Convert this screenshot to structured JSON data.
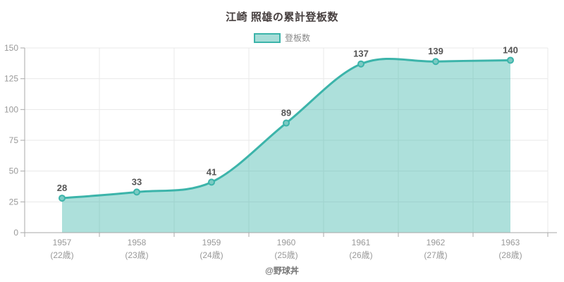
{
  "title": "江崎 照雄の累計登板数",
  "legend": {
    "label": "登板数"
  },
  "footer": "@野球丼",
  "colors": {
    "line": "#3cb4aa",
    "fill": "#3cb4aa",
    "fill_opacity": 0.42,
    "marker_fill": "#7bcac3",
    "marker_stroke": "#3cb4aa",
    "value_label": "#555555",
    "tick_label": "#999999",
    "grid": "#e8e8e8",
    "axis": "#aaaaaa",
    "title_text": "#463f3f",
    "legend_text": "#888888",
    "footer_text": "#777777"
  },
  "chart_data": {
    "type": "area",
    "title": "江崎 照雄の累計登板数",
    "categories": [
      "1957",
      "1958",
      "1959",
      "1960",
      "1961",
      "1962",
      "1963"
    ],
    "category_sublabels": [
      "(22歳)",
      "(23歳)",
      "(24歳)",
      "(25歳)",
      "(26歳)",
      "(27歳)",
      "(28歳)"
    ],
    "series": [
      {
        "name": "登板数",
        "values": [
          28,
          33,
          41,
          89,
          137,
          139,
          140
        ]
      }
    ],
    "xlabel": "",
    "ylabel": "",
    "ylim": [
      0,
      150
    ],
    "yticks": [
      0,
      25,
      50,
      75,
      100,
      125,
      150
    ],
    "grid": true,
    "smooth": true,
    "legend_position": "top",
    "value_labels_shown": true
  }
}
